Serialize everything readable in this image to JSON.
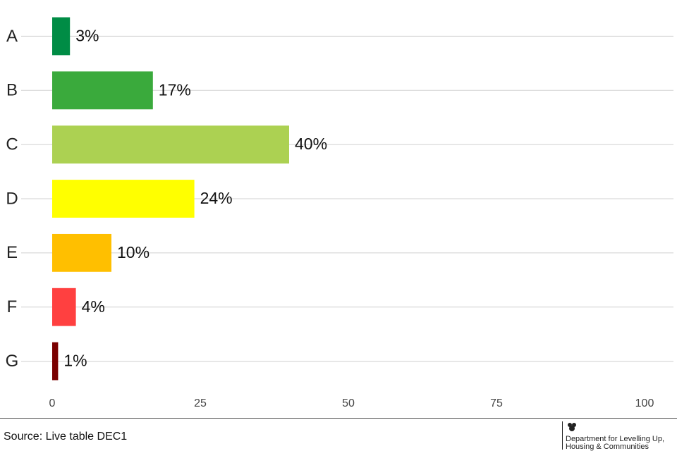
{
  "chart_data": {
    "type": "barh",
    "categories": [
      "A",
      "B",
      "C",
      "D",
      "E",
      "F",
      "G"
    ],
    "values": [
      3,
      17,
      40,
      24,
      10,
      4,
      1
    ],
    "value_labels": [
      "3%",
      "17%",
      "40%",
      "24%",
      "10%",
      "4%",
      "1%"
    ],
    "colors": [
      "#008c45",
      "#3aaa3c",
      "#acd152",
      "#ffff00",
      "#ffbf00",
      "#ff4040",
      "#7a0000"
    ],
    "xlim": [
      0,
      100
    ],
    "xticks": [
      0,
      25,
      50,
      75,
      100
    ],
    "category_lines": true
  },
  "footer": {
    "source": "Source: Live table DEC1",
    "logo": [
      "Department for Levelling Up,",
      "Housing & Communities"
    ]
  }
}
